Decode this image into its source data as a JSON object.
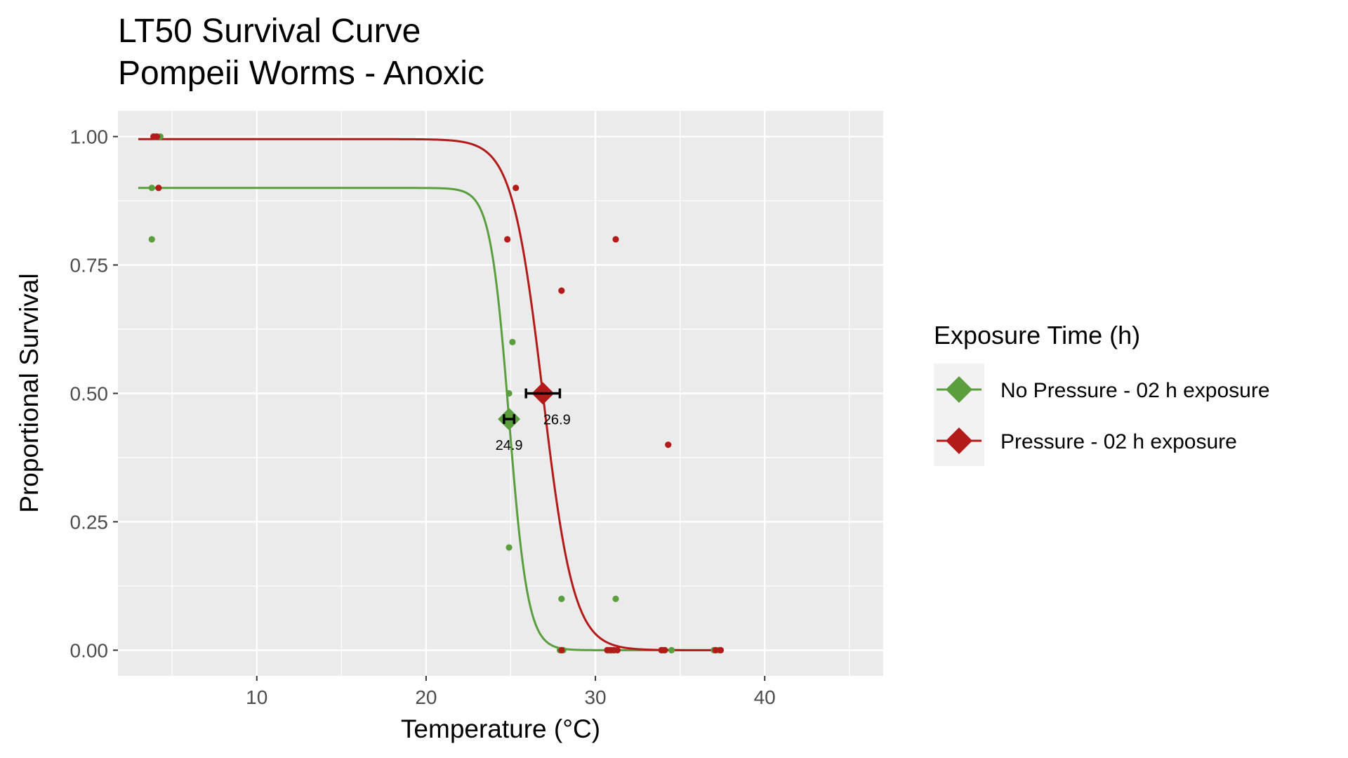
{
  "chart_data": {
    "type": "line",
    "title": [
      "LT50 Survival Curve",
      "Pompeii Worms - Anoxic"
    ],
    "xlabel": "Temperature (°C)",
    "ylabel": "Proportional Survival",
    "xlim": [
      1.8,
      47.0
    ],
    "ylim": [
      -0.05,
      1.05
    ],
    "xticks": [
      10,
      20,
      30,
      40
    ],
    "xtick_labels": [
      "10",
      "20",
      "30",
      "40"
    ],
    "yticks": [
      0,
      0.25,
      0.5,
      0.75,
      1.0
    ],
    "ytick_labels": [
      "0.00",
      "0.25",
      "0.50",
      "0.75",
      "1.00"
    ],
    "grid": true,
    "legend": {
      "title": "Exposure Time (h)",
      "position": "right"
    },
    "series": [
      {
        "name": "No Pressure - 02 h exposure",
        "color": "#5a9e3e",
        "curve": {
          "top": 0.9,
          "bottom": 0.0,
          "lt50": 24.9,
          "slope": 1.8,
          "x_range": [
            3.0,
            37.5
          ]
        },
        "points": [
          [
            4.0,
            1.0
          ],
          [
            4.3,
            1.0
          ],
          [
            3.8,
            0.9
          ],
          [
            3.8,
            0.8
          ],
          [
            25.1,
            0.6
          ],
          [
            24.9,
            0.5
          ],
          [
            24.9,
            0.2
          ],
          [
            28.0,
            0.1
          ],
          [
            31.2,
            0.1
          ],
          [
            27.9,
            0.0
          ],
          [
            28.1,
            0.0
          ],
          [
            30.8,
            0.0
          ],
          [
            31.0,
            0.0
          ],
          [
            34.0,
            0.0
          ],
          [
            34.5,
            0.0
          ],
          [
            37.0,
            0.0
          ],
          [
            37.3,
            0.0
          ]
        ],
        "lt50_point": {
          "x": 24.9,
          "y": 0.45,
          "ci": [
            24.6,
            25.2
          ],
          "label": "24.9"
        }
      },
      {
        "name": "Pressure - 02 h exposure",
        "color": "#b31b1b",
        "curve": {
          "top": 0.995,
          "bottom": 0.0,
          "lt50": 26.9,
          "slope": 1.1,
          "x_range": [
            3.0,
            37.5
          ]
        },
        "points": [
          [
            3.9,
            1.0
          ],
          [
            4.1,
            1.0
          ],
          [
            4.2,
            0.9
          ],
          [
            25.3,
            0.9
          ],
          [
            24.8,
            0.8
          ],
          [
            31.2,
            0.8
          ],
          [
            28.0,
            0.7
          ],
          [
            34.3,
            0.4
          ],
          [
            28.0,
            0.0
          ],
          [
            30.7,
            0.0
          ],
          [
            30.9,
            0.0
          ],
          [
            31.1,
            0.0
          ],
          [
            31.3,
            0.0
          ],
          [
            33.9,
            0.0
          ],
          [
            34.1,
            0.0
          ],
          [
            37.1,
            0.0
          ],
          [
            37.4,
            0.0
          ]
        ],
        "lt50_point": {
          "x": 26.9,
          "y": 0.5,
          "ci": [
            25.9,
            27.9
          ],
          "label": "26.9"
        }
      }
    ]
  }
}
